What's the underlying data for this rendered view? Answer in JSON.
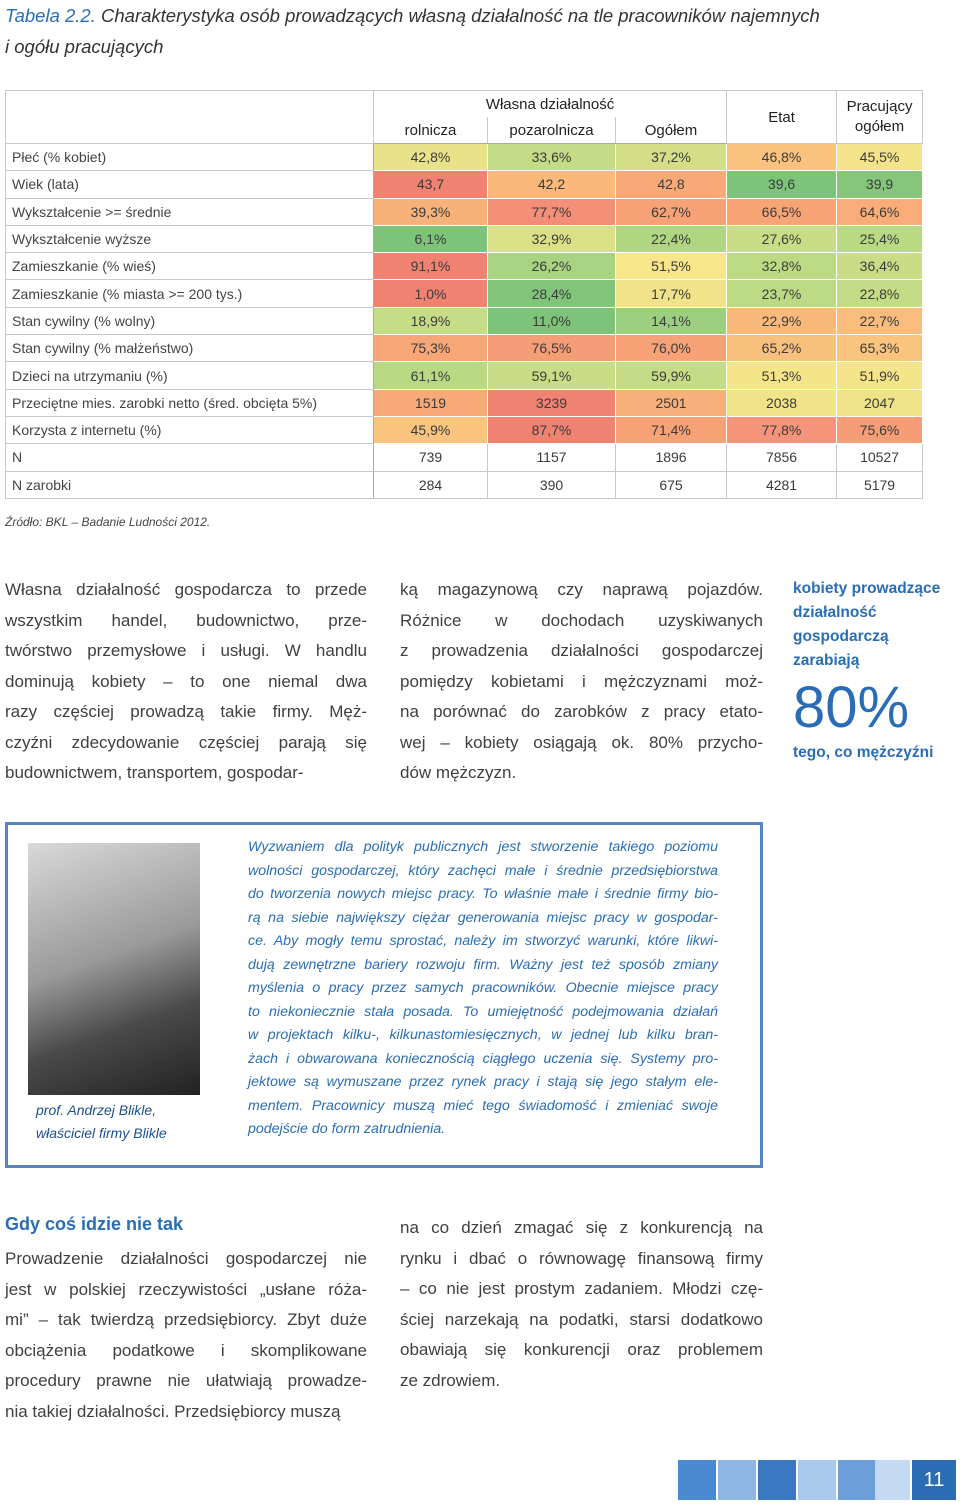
{
  "title": {
    "label": "Tabela 2.2.",
    "lines": [
      "Charakterystyka osób prowadzących własną działalność na tle pracowników najemnych",
      "i ogółu pracujących"
    ]
  },
  "table": {
    "group": "Własna działalność",
    "columns": [
      "rolnicza",
      "pozarolnicza",
      "Ogółem",
      "Etat",
      "Pracujący ogółem"
    ],
    "rows": [
      {
        "label": "Płeć (% kobiet)",
        "values": [
          "42,8%",
          "33,6%",
          "37,2%",
          "46,8%",
          "45,5%"
        ],
        "colors": [
          "#e8e288",
          "#c3dc85",
          "#d3df87",
          "#f9c27e",
          "#f3e389"
        ]
      },
      {
        "label": "Wiek (lata)",
        "values": [
          "43,7",
          "42,2",
          "42,8",
          "39,6",
          "39,9"
        ],
        "colors": [
          "#f08272",
          "#f8b97b",
          "#f7aa78",
          "#7dc47a",
          "#86c67b"
        ]
      },
      {
        "label": "Wykształcenie >= średnie",
        "values": [
          "39,3%",
          "77,7%",
          "62,7%",
          "66,5%",
          "64,6%"
        ],
        "colors": [
          "#f7b27a",
          "#f38f76",
          "#f6a276",
          "#f7a577",
          "#f8ad79"
        ]
      },
      {
        "label": "Wykształcenie wyższe",
        "values": [
          "6,1%",
          "32,9%",
          "22,4%",
          "27,6%",
          "25,4%"
        ],
        "colors": [
          "#7dc47a",
          "#d9e088",
          "#b1d682",
          "#c9dd86",
          "#b9d983"
        ]
      },
      {
        "label": "Zamieszkanie (% wieś)",
        "values": [
          "91,1%",
          "26,2%",
          "51,5%",
          "32,8%",
          "36,4%"
        ],
        "colors": [
          "#f08272",
          "#a8d381",
          "#f7e68a",
          "#bcda84",
          "#cadd86"
        ]
      },
      {
        "label": "Zamieszkanie (% miasta >= 200 tys.)",
        "values": [
          "1,0%",
          "28,4%",
          "17,7%",
          "23,7%",
          "22,8%"
        ],
        "colors": [
          "#f08272",
          "#80c57a",
          "#f1e389",
          "#bcda84",
          "#c4dc85"
        ]
      },
      {
        "label": "Stan cywilny (% wolny)",
        "values": [
          "18,9%",
          "11,0%",
          "14,1%",
          "22,9%",
          "22,7%"
        ],
        "colors": [
          "#c5dd86",
          "#7dc47a",
          "#9ccf80",
          "#f8b97b",
          "#f8bd7c"
        ]
      },
      {
        "label": "Stan cywilny (% małżeństwo)",
        "values": [
          "75,3%",
          "76,5%",
          "76,0%",
          "65,2%",
          "65,3%"
        ],
        "colors": [
          "#f7a677",
          "#f59d76",
          "#f6a276",
          "#f8c07d",
          "#f8c47e"
        ]
      },
      {
        "label": "Dzieci na utrzymaniu (%)",
        "values": [
          "61,1%",
          "59,1%",
          "59,9%",
          "51,3%",
          "51,9%"
        ],
        "colors": [
          "#b9d983",
          "#c9dd86",
          "#c3dc85",
          "#f5e589",
          "#f3e489"
        ]
      },
      {
        "label": "Przeciętne mies. zarobki netto (śred. obcięta 5%)",
        "values": [
          "1519",
          "3239",
          "2501",
          "2038",
          "2047"
        ],
        "colors": [
          "#f7aa78",
          "#f08272",
          "#f7b07a",
          "#f1e389",
          "#eee388"
        ]
      },
      {
        "label": "Korzysta z internetu (%)",
        "values": [
          "45,9%",
          "87,7%",
          "71,4%",
          "77,8%",
          "75,6%"
        ],
        "colors": [
          "#f8c47e",
          "#f08272",
          "#f6a276",
          "#f4947a",
          "#f59d76"
        ]
      },
      {
        "label": "N",
        "values": [
          "739",
          "1157",
          "1896",
          "7856",
          "10527"
        ],
        "colors": [
          "#ffffff",
          "#ffffff",
          "#ffffff",
          "#ffffff",
          "#ffffff"
        ]
      },
      {
        "label": "N zarobki",
        "values": [
          "284",
          "390",
          "675",
          "4281",
          "5179"
        ],
        "colors": [
          "#ffffff",
          "#ffffff",
          "#ffffff",
          "#ffffff",
          "#ffffff"
        ]
      }
    ]
  },
  "source": "Źródło: BKL – Badanie Ludności 2012.",
  "intro": {
    "col1": [
      "Własna działalność gospodarcza to przede",
      "wszystkim handel, budownictwo, prze-",
      "twórstwo przemysłowe i usługi. W handlu",
      "dominują kobiety – to one niemal dwa",
      "razy częściej prowadzą takie firmy. Męż-",
      "czyźni zdecydowanie częściej parają się",
      "budownictwem, transportem, gospodar-"
    ],
    "col2": [
      "ką magazynową czy naprawą pojazdów.",
      "Różnice w dochodach uzyskiwanych",
      "z prowadzenia działalności gospodarczej",
      "pomiędzy kobietami i mężczyznami moż-",
      "na porównać do zarobków z pracy etato-",
      "wej – kobiety osiągają ok. 80% przycho-",
      "dów mężczyzn."
    ]
  },
  "sidebar": {
    "lines": [
      "kobiety prowadzące",
      "działalność",
      "gospodarczą",
      "zarabiają"
    ],
    "big": "80%",
    "after": "tego, co mężczyźni"
  },
  "quote": {
    "caption": [
      "prof. Andrzej Blikle,",
      "właściciel firmy Blikle"
    ],
    "lines": [
      "Wyzwaniem dla polityk publicznych jest stworzenie takiego poziomu",
      "wolności gospodarczej, który zachęci małe i średnie przedsiębiorstwa",
      "do tworzenia nowych miejsc pracy. To właśnie małe i średnie firmy bio-",
      "rą na siebie największy ciężar generowania miejsc pracy w gospodar-",
      "ce. Aby mogły temu sprostać, należy im stworzyć warunki, które likwi-",
      "dują zewnętrzne bariery rozwoju firm. Ważny jest też sposób zmiany",
      "myślenia o pracy przez samych pracowników. Obecnie miejsce pracy",
      "to niekoniecznie stała posada. To umiejętność podejmowania działań",
      "w projektach kilku-, kilkunastomiesięcznych, w jednej lub kilku bran-",
      "żach i obwarowana koniecznością ciągłego uczenia się. Systemy pro-",
      "jektowe są wymuszane przez rynek pracy i stają się jego stałym ele-",
      "mentem. Pracownicy muszą mieć tego świadomość i zmieniać swoje",
      "podejście do form zatrudnienia."
    ]
  },
  "section": {
    "heading": "Gdy coś idzie nie tak",
    "col1": [
      "Prowadzenie działalności gospodarczej nie",
      "jest w polskiej rzeczywistości „usłane róża-",
      "mi” – tak twierdzą przedsiębiorcy. Zbyt duże",
      "obciążenia podatkowe i skomplikowane",
      "procedury prawne nie ułatwiają prowadze-",
      "nia takiej działalności. Przedsiębiorcy muszą"
    ],
    "col2": [
      "na co dzień zmagać się z konkurencją na",
      "rynku i dbać o równowagę finansową firmy",
      "– co nie jest prostym zadaniem. Młodzi czę-",
      "ściej narzekają na podatki, starsi dodatkowo",
      "obawiają się konkurencji oraz problemem",
      "ze zdrowiem."
    ]
  },
  "page_number": "11"
}
